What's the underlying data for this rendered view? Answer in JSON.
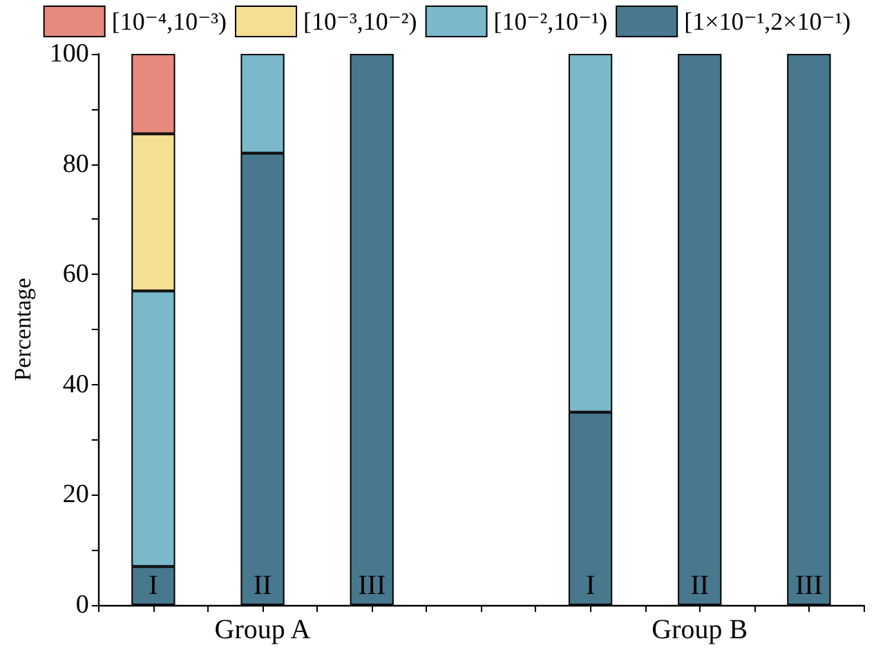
{
  "chart_data": {
    "type": "bar",
    "stacked": true,
    "categories": [
      "I",
      "II",
      "III",
      null,
      "I",
      "II",
      "III"
    ],
    "series": [
      {
        "name": "[1×10⁻¹,2×10⁻¹)",
        "color": "#47788d",
        "values": [
          7,
          82,
          100,
          null,
          35,
          100,
          100
        ]
      },
      {
        "name": "[10⁻²,10⁻¹)",
        "color": "#7ab8ca",
        "values": [
          50,
          18,
          null,
          null,
          65,
          null,
          null
        ]
      },
      {
        "name": "[10⁻³,10⁻²)",
        "color": "#f5df92",
        "values": [
          28.5,
          null,
          null,
          null,
          null,
          null,
          null
        ]
      },
      {
        "name": "[10⁻⁴,10⁻³)",
        "color": "#e58a7c",
        "values": [
          14.5,
          null,
          null,
          null,
          null,
          null,
          null
        ]
      }
    ],
    "ylabel": "Percentage",
    "ylim": [
      0,
      100
    ],
    "yticks": [
      0,
      {
        "value": 10,
        "label": null
      },
      20,
      {
        "value": 30,
        "label": null
      },
      40,
      {
        "value": 50,
        "label": null
      },
      60,
      {
        "value": 70,
        "label": null
      },
      80,
      {
        "value": 90,
        "label": null
      },
      100
    ],
    "legend": "top",
    "annotations": [
      "Group A",
      "Group B"
    ]
  }
}
